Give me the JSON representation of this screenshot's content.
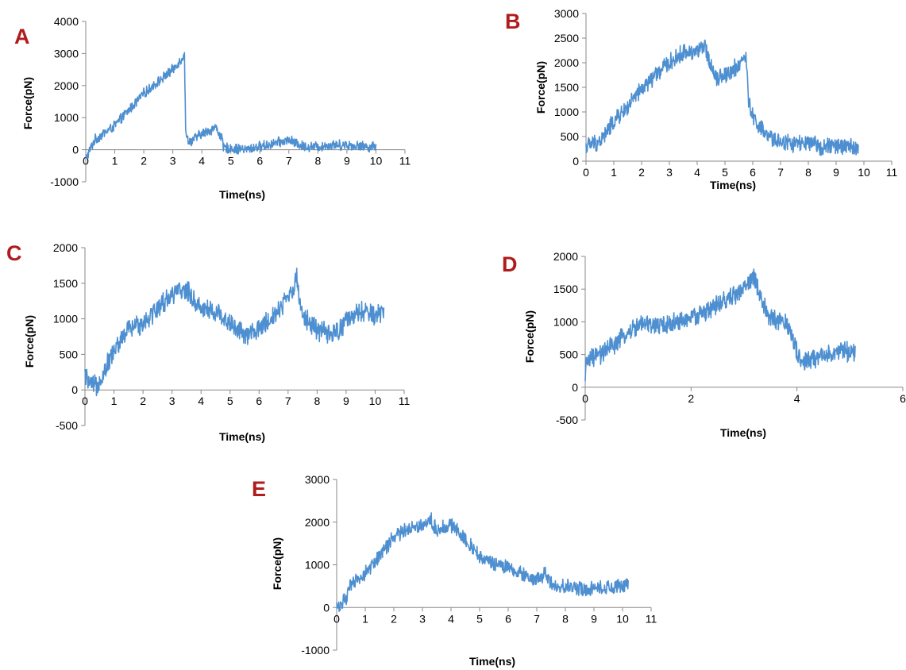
{
  "panel_letter_color": "#b01c1c",
  "line_color": "#4d8fd0",
  "chart_data": [
    {
      "panel": "A",
      "type": "line",
      "xlabel": "Time(ns)",
      "ylabel": "Force(pN)",
      "xlim": [
        0,
        11
      ],
      "ylim": [
        -1000,
        4000
      ],
      "xticks": [
        "0",
        "1",
        "2",
        "3",
        "4",
        "5",
        "6",
        "7",
        "8",
        "9",
        "10",
        "11"
      ],
      "yticks": [
        "-1000",
        "0",
        "1000",
        "2000",
        "3000",
        "4000"
      ],
      "series": [
        {
          "x": [
            0,
            0.3,
            1.0,
            2.0,
            3.0,
            3.4,
            3.45,
            3.6,
            4.0,
            4.5,
            4.7,
            4.75,
            5.0,
            5.5,
            6.0,
            6.5,
            7.0,
            7.5,
            8.0,
            8.5,
            9.0,
            9.5,
            10.0
          ],
          "y": [
            -300,
            300,
            750,
            1750,
            2500,
            2950,
            400,
            250,
            500,
            700,
            300,
            50,
            50,
            0,
            100,
            200,
            300,
            100,
            100,
            150,
            150,
            100,
            100
          ],
          "noise": 180
        }
      ]
    },
    {
      "panel": "B",
      "type": "line",
      "xlabel": "Time(ns)",
      "ylabel": "Force(pN)",
      "xlim": [
        0,
        11
      ],
      "ylim": [
        0,
        3000
      ],
      "xticks": [
        "0",
        "1",
        "2",
        "3",
        "4",
        "5",
        "6",
        "7",
        "8",
        "9",
        "10",
        "11"
      ],
      "yticks": [
        "0",
        "500",
        "1000",
        "1500",
        "2000",
        "2500",
        "3000"
      ],
      "series": [
        {
          "x": [
            0,
            0.5,
            1.0,
            1.5,
            2.0,
            2.5,
            3.0,
            3.5,
            4.0,
            4.3,
            4.5,
            4.7,
            5.0,
            5.5,
            5.75,
            5.85,
            6.0,
            6.5,
            7.0,
            7.5,
            8.0,
            8.5,
            9.0,
            9.5,
            9.8
          ],
          "y": [
            300,
            400,
            800,
            1100,
            1450,
            1750,
            2000,
            2200,
            2250,
            2300,
            1950,
            1700,
            1750,
            1950,
            2150,
            1200,
            900,
            500,
            400,
            350,
            350,
            300,
            300,
            300,
            250
          ],
          "noise": 200
        }
      ]
    },
    {
      "panel": "C",
      "type": "line",
      "xlabel": "Time(ns)",
      "ylabel": "Force(pN)",
      "xlim": [
        0,
        11
      ],
      "ylim": [
        -500,
        2000
      ],
      "xticks": [
        "0",
        "1",
        "2",
        "3",
        "4",
        "5",
        "6",
        "7",
        "8",
        "9",
        "10",
        "11"
      ],
      "yticks": [
        "-500",
        "0",
        "500",
        "1000",
        "1500",
        "2000"
      ],
      "series": [
        {
          "x": [
            0,
            0.2,
            0.4,
            0.7,
            1.0,
            1.5,
            2.0,
            2.5,
            3.0,
            3.5,
            4.0,
            4.5,
            5.0,
            5.5,
            6.0,
            6.5,
            7.0,
            7.3,
            7.5,
            8.0,
            8.5,
            9.0,
            9.5,
            10.0,
            10.3
          ],
          "y": [
            200,
            50,
            50,
            300,
            550,
            850,
            950,
            1150,
            1350,
            1400,
            1150,
            1100,
            950,
            750,
            850,
            1050,
            1300,
            1550,
            1050,
            850,
            750,
            950,
            1100,
            1050,
            1100
          ],
          "noise": 170
        }
      ]
    },
    {
      "panel": "D",
      "type": "line",
      "xlabel": "Time(ns)",
      "ylabel": "Force(pN)",
      "xlim": [
        0,
        6
      ],
      "ylim": [
        -500,
        2000
      ],
      "xticks": [
        "0",
        "2",
        "4",
        "6"
      ],
      "yticks": [
        "-500",
        "0",
        "500",
        "1000",
        "1500",
        "2000"
      ],
      "series": [
        {
          "x": [
            0,
            0.02,
            0.3,
            0.7,
            1.0,
            1.5,
            2.0,
            2.5,
            3.0,
            3.2,
            3.3,
            3.5,
            3.8,
            4.0,
            4.1,
            4.5,
            5.0,
            5.1
          ],
          "y": [
            0,
            400,
            500,
            750,
            950,
            950,
            1050,
            1250,
            1500,
            1700,
            1350,
            1050,
            1000,
            550,
            350,
            500,
            550,
            550
          ],
          "noise": 170
        }
      ]
    },
    {
      "panel": "E",
      "type": "line",
      "xlabel": "Time(ns)",
      "ylabel": "Force(pN)",
      "xlim": [
        0,
        11
      ],
      "ylim": [
        -1000,
        3000
      ],
      "xticks": [
        "0",
        "1",
        "2",
        "3",
        "4",
        "5",
        "6",
        "7",
        "8",
        "9",
        "10",
        "11"
      ],
      "yticks": [
        "-1000",
        "0",
        "1000",
        "2000",
        "3000"
      ],
      "series": [
        {
          "x": [
            0,
            0.3,
            0.5,
            1.0,
            1.5,
            2.0,
            2.5,
            3.0,
            3.3,
            3.5,
            4.0,
            4.5,
            5.0,
            5.5,
            6.0,
            6.5,
            7.0,
            7.3,
            7.6,
            8.0,
            8.5,
            9.0,
            9.5,
            10.0,
            10.2
          ],
          "y": [
            0,
            200,
            500,
            800,
            1200,
            1650,
            1850,
            1950,
            2050,
            1800,
            1950,
            1600,
            1200,
            1000,
            950,
            750,
            650,
            800,
            450,
            500,
            450,
            450,
            450,
            500,
            550
          ],
          "noise": 200
        }
      ]
    }
  ]
}
